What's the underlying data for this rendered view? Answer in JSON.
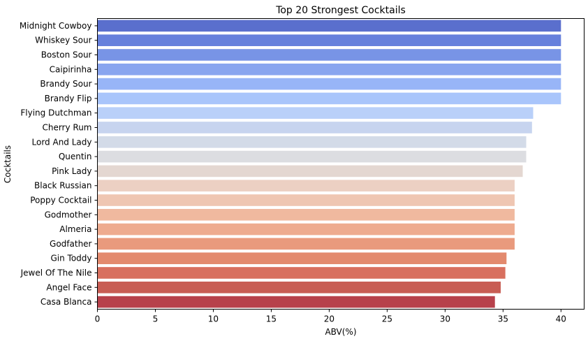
{
  "chart_data": {
    "type": "bar",
    "orientation": "horizontal",
    "title": "Top 20 Strongest Cocktails",
    "xlabel": "ABV(%)",
    "ylabel": "Cocktails",
    "xlim": [
      0,
      42
    ],
    "xticks": [
      0,
      5,
      10,
      15,
      20,
      25,
      30,
      35,
      40
    ],
    "grid": false,
    "legend": "none",
    "categories": [
      "Midnight Cowboy",
      "Whiskey Sour",
      "Boston Sour",
      "Caipirinha",
      "Brandy Sour",
      "Brandy Flip",
      "Flying Dutchman",
      "Cherry Rum",
      "Lord And Lady",
      "Quentin",
      "Pink Lady",
      "Black Russian",
      "Poppy Cocktail",
      "Godmother",
      "Almeria",
      "Godfather",
      "Gin Toddy",
      "Jewel Of The Nile",
      "Angel Face",
      "Casa Blanca"
    ],
    "values": [
      40,
      40,
      40,
      40,
      40,
      40,
      37.6,
      37.5,
      37,
      37,
      36.7,
      36,
      36,
      36,
      36,
      36,
      35.3,
      35.2,
      34.8,
      34.3
    ],
    "colors": [
      "#5a6fcd",
      "#6680dc",
      "#7894e6",
      "#89a5ef",
      "#98b5f7",
      "#a9c5fb",
      "#b9d0f9",
      "#c7d4ef",
      "#d3dbe8",
      "#dcdde1",
      "#e4d7d1",
      "#ecd0c3",
      "#efc6b2",
      "#f0b99f",
      "#eeab8f",
      "#e99a7d",
      "#e38a6e",
      "#d8705f",
      "#c85d54",
      "#b7414b"
    ]
  }
}
